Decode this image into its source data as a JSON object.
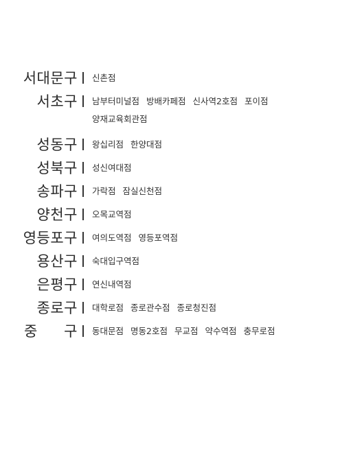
{
  "districts": [
    {
      "name": "서대문구",
      "branches": [
        "신촌점"
      ]
    },
    {
      "name": "서초구",
      "branches": [
        "남부터미널점",
        "방배카페점",
        "신사역2호점",
        "포이점",
        "양재교육회관점"
      ]
    },
    {
      "name": "성동구",
      "branches": [
        "왕십리점",
        "한양대점"
      ]
    },
    {
      "name": "성북구",
      "branches": [
        "성신여대점"
      ]
    },
    {
      "name": "송파구",
      "branches": [
        "가락점",
        "잠실신천점"
      ]
    },
    {
      "name": "양천구",
      "branches": [
        "오목교역점"
      ]
    },
    {
      "name": "영등포구",
      "branches": [
        "여의도역점",
        "영등포역점"
      ]
    },
    {
      "name": "용산구",
      "branches": [
        "숙대입구역점"
      ]
    },
    {
      "name": "은평구",
      "branches": [
        "연신내역점"
      ]
    },
    {
      "name": "종로구",
      "branches": [
        "대학로점",
        "종로관수점",
        "종로청진점"
      ]
    },
    {
      "name_parts": [
        "중",
        "구"
      ],
      "branches": [
        "동대문점",
        "명동2호점",
        "무교점",
        "약수역점",
        "충무로점"
      ]
    }
  ]
}
